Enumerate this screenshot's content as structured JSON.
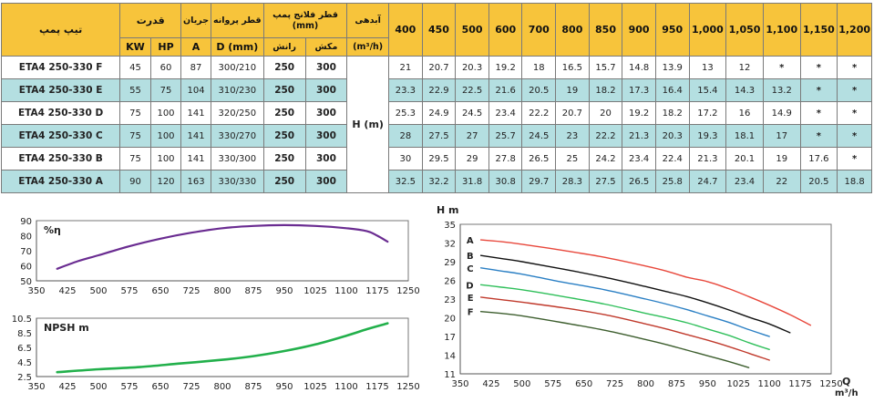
{
  "table": {
    "header": {
      "model": "تیپ پمپ",
      "power": "قدرت",
      "flow": "جریان",
      "impeller": "قطر پروانه",
      "flange": "قطر فلانج پمپ (mm)",
      "delivery": "آبدهی",
      "kw": "KW",
      "hp": "HP",
      "a": "A",
      "dmm": "D (mm)",
      "rans": "رانش",
      "makesh": "مکش",
      "unit": "(m³/h)",
      "hm": "H (m)"
    },
    "flows": [
      "400",
      "450",
      "500",
      "600",
      "700",
      "800",
      "850",
      "900",
      "950",
      "1,000",
      "1,050",
      "1,100",
      "1,150",
      "1,200"
    ],
    "rows": [
      {
        "model": "ETA4 250-330 F",
        "kw": "45",
        "hp": "60",
        "a": "87",
        "d": "300/210",
        "rans": "250",
        "makesh": "300",
        "h": [
          "21",
          "20.7",
          "20.3",
          "19.2",
          "18",
          "16.5",
          "15.7",
          "14.8",
          "13.9",
          "13",
          "12",
          "*",
          "*",
          "*"
        ]
      },
      {
        "model": "ETA4 250-330 E",
        "kw": "55",
        "hp": "75",
        "a": "104",
        "d": "310/230",
        "rans": "250",
        "makesh": "300",
        "h": [
          "23.3",
          "22.9",
          "22.5",
          "21.6",
          "20.5",
          "19",
          "18.2",
          "17.3",
          "16.4",
          "15.4",
          "14.3",
          "13.2",
          "*",
          "*"
        ]
      },
      {
        "model": "ETA4 250-330 D",
        "kw": "75",
        "hp": "100",
        "a": "141",
        "d": "320/250",
        "rans": "250",
        "makesh": "300",
        "h": [
          "25.3",
          "24.9",
          "24.5",
          "23.4",
          "22.2",
          "20.7",
          "20",
          "19.2",
          "18.2",
          "17.2",
          "16",
          "14.9",
          "*",
          "*"
        ]
      },
      {
        "model": "ETA4 250-330 C",
        "kw": "75",
        "hp": "100",
        "a": "141",
        "d": "330/270",
        "rans": "250",
        "makesh": "300",
        "h": [
          "28",
          "27.5",
          "27",
          "25.7",
          "24.5",
          "23",
          "22.2",
          "21.3",
          "20.3",
          "19.3",
          "18.1",
          "17",
          "*",
          "*"
        ]
      },
      {
        "model": "ETA4 250-330 B",
        "kw": "75",
        "hp": "100",
        "a": "141",
        "d": "330/300",
        "rans": "250",
        "makesh": "300",
        "h": [
          "30",
          "29.5",
          "29",
          "27.8",
          "26.5",
          "25",
          "24.2",
          "23.4",
          "22.4",
          "21.3",
          "20.1",
          "19",
          "17.6",
          "*"
        ]
      },
      {
        "model": "ETA4 250-330 A",
        "kw": "90",
        "hp": "120",
        "a": "163",
        "d": "330/330",
        "rans": "250",
        "makesh": "300",
        "h": [
          "32.5",
          "32.2",
          "31.8",
          "30.8",
          "29.7",
          "28.3",
          "27.5",
          "26.5",
          "25.8",
          "24.7",
          "23.4",
          "22",
          "20.5",
          "18.8"
        ]
      }
    ]
  },
  "chart_data": [
    {
      "type": "line",
      "title": "%η",
      "xlabel": "",
      "ylabel": "",
      "xlim": [
        350,
        1250
      ],
      "ylim": [
        50,
        90
      ],
      "xticks": [
        "350",
        "425",
        "500",
        "575",
        "650",
        "725",
        "800",
        "875",
        "950",
        "1025",
        "1100",
        "1175",
        "1250"
      ],
      "yticks": [
        "50",
        "60",
        "70",
        "80",
        "90"
      ],
      "grid": false,
      "series": [
        {
          "color": "#6a2c91",
          "x": [
            400,
            450,
            500,
            575,
            650,
            725,
            800,
            875,
            950,
            1025,
            1100,
            1150,
            1175,
            1200
          ],
          "y": [
            58,
            63,
            67,
            73,
            78,
            82,
            85,
            86.5,
            87,
            86.5,
            85,
            83,
            80,
            76
          ]
        }
      ]
    },
    {
      "type": "line",
      "title": "NPSH m",
      "xlabel": "",
      "ylabel": "",
      "xlim": [
        350,
        1250
      ],
      "ylim": [
        2.5,
        10.5
      ],
      "xticks": [
        "350",
        "425",
        "500",
        "575",
        "650",
        "725",
        "800",
        "875",
        "950",
        "1025",
        "1100",
        "1175",
        "1250"
      ],
      "yticks": [
        "2.5",
        "4.5",
        "6.5",
        "8.5",
        "10.5"
      ],
      "grid": false,
      "series": [
        {
          "color": "#22b04b",
          "x": [
            400,
            500,
            600,
            700,
            800,
            875,
            950,
            1025,
            1100,
            1150,
            1200
          ],
          "y": [
            3.1,
            3.5,
            3.8,
            4.3,
            4.8,
            5.3,
            6.0,
            6.9,
            8.1,
            9.0,
            9.8
          ]
        }
      ]
    },
    {
      "type": "line",
      "title": "",
      "xlabel": "Q m³/h",
      "ylabel": "H m",
      "xlim": [
        350,
        1250
      ],
      "ylim": [
        11,
        35
      ],
      "xticks": [
        "350",
        "425",
        "500",
        "575",
        "650",
        "725",
        "800",
        "875",
        "950",
        "1025",
        "1100",
        "1175",
        "1250"
      ],
      "yticks": [
        "11",
        "14",
        "17",
        "20",
        "23",
        "26",
        "29",
        "32",
        "35"
      ],
      "grid": false,
      "series": [
        {
          "name": "A",
          "color": "#e8473b",
          "x": [
            400,
            450,
            500,
            600,
            700,
            800,
            850,
            900,
            950,
            1000,
            1050,
            1100,
            1150,
            1200
          ],
          "y": [
            32.5,
            32.2,
            31.8,
            30.8,
            29.7,
            28.3,
            27.5,
            26.5,
            25.8,
            24.7,
            23.4,
            22,
            20.5,
            18.8
          ]
        },
        {
          "name": "B",
          "color": "#111111",
          "x": [
            400,
            450,
            500,
            600,
            700,
            800,
            850,
            900,
            950,
            1000,
            1050,
            1100,
            1150
          ],
          "y": [
            30,
            29.5,
            29,
            27.8,
            26.5,
            25,
            24.2,
            23.4,
            22.4,
            21.3,
            20.1,
            19,
            17.6
          ]
        },
        {
          "name": "C",
          "color": "#2a7fc4",
          "x": [
            400,
            450,
            500,
            600,
            700,
            800,
            850,
            900,
            950,
            1000,
            1050,
            1100
          ],
          "y": [
            28,
            27.5,
            27,
            25.7,
            24.5,
            23,
            22.2,
            21.3,
            20.3,
            19.3,
            18.1,
            17
          ]
        },
        {
          "name": "D",
          "color": "#2fbf5a",
          "x": [
            400,
            450,
            500,
            600,
            700,
            800,
            850,
            900,
            950,
            1000,
            1050,
            1100
          ],
          "y": [
            25.3,
            24.9,
            24.5,
            23.4,
            22.2,
            20.7,
            20,
            19.2,
            18.2,
            17.2,
            16,
            14.9
          ]
        },
        {
          "name": "E",
          "color": "#c0392b",
          "x": [
            400,
            450,
            500,
            600,
            700,
            800,
            850,
            900,
            950,
            1000,
            1050,
            1100
          ],
          "y": [
            23.3,
            22.9,
            22.5,
            21.6,
            20.5,
            19,
            18.2,
            17.3,
            16.4,
            15.4,
            14.3,
            13.2
          ]
        },
        {
          "name": "F",
          "color": "#3d5e2e",
          "x": [
            400,
            450,
            500,
            600,
            700,
            800,
            850,
            900,
            950,
            1000,
            1050
          ],
          "y": [
            21,
            20.7,
            20.3,
            19.2,
            18,
            16.5,
            15.7,
            14.8,
            13.9,
            13,
            12
          ]
        }
      ]
    }
  ]
}
